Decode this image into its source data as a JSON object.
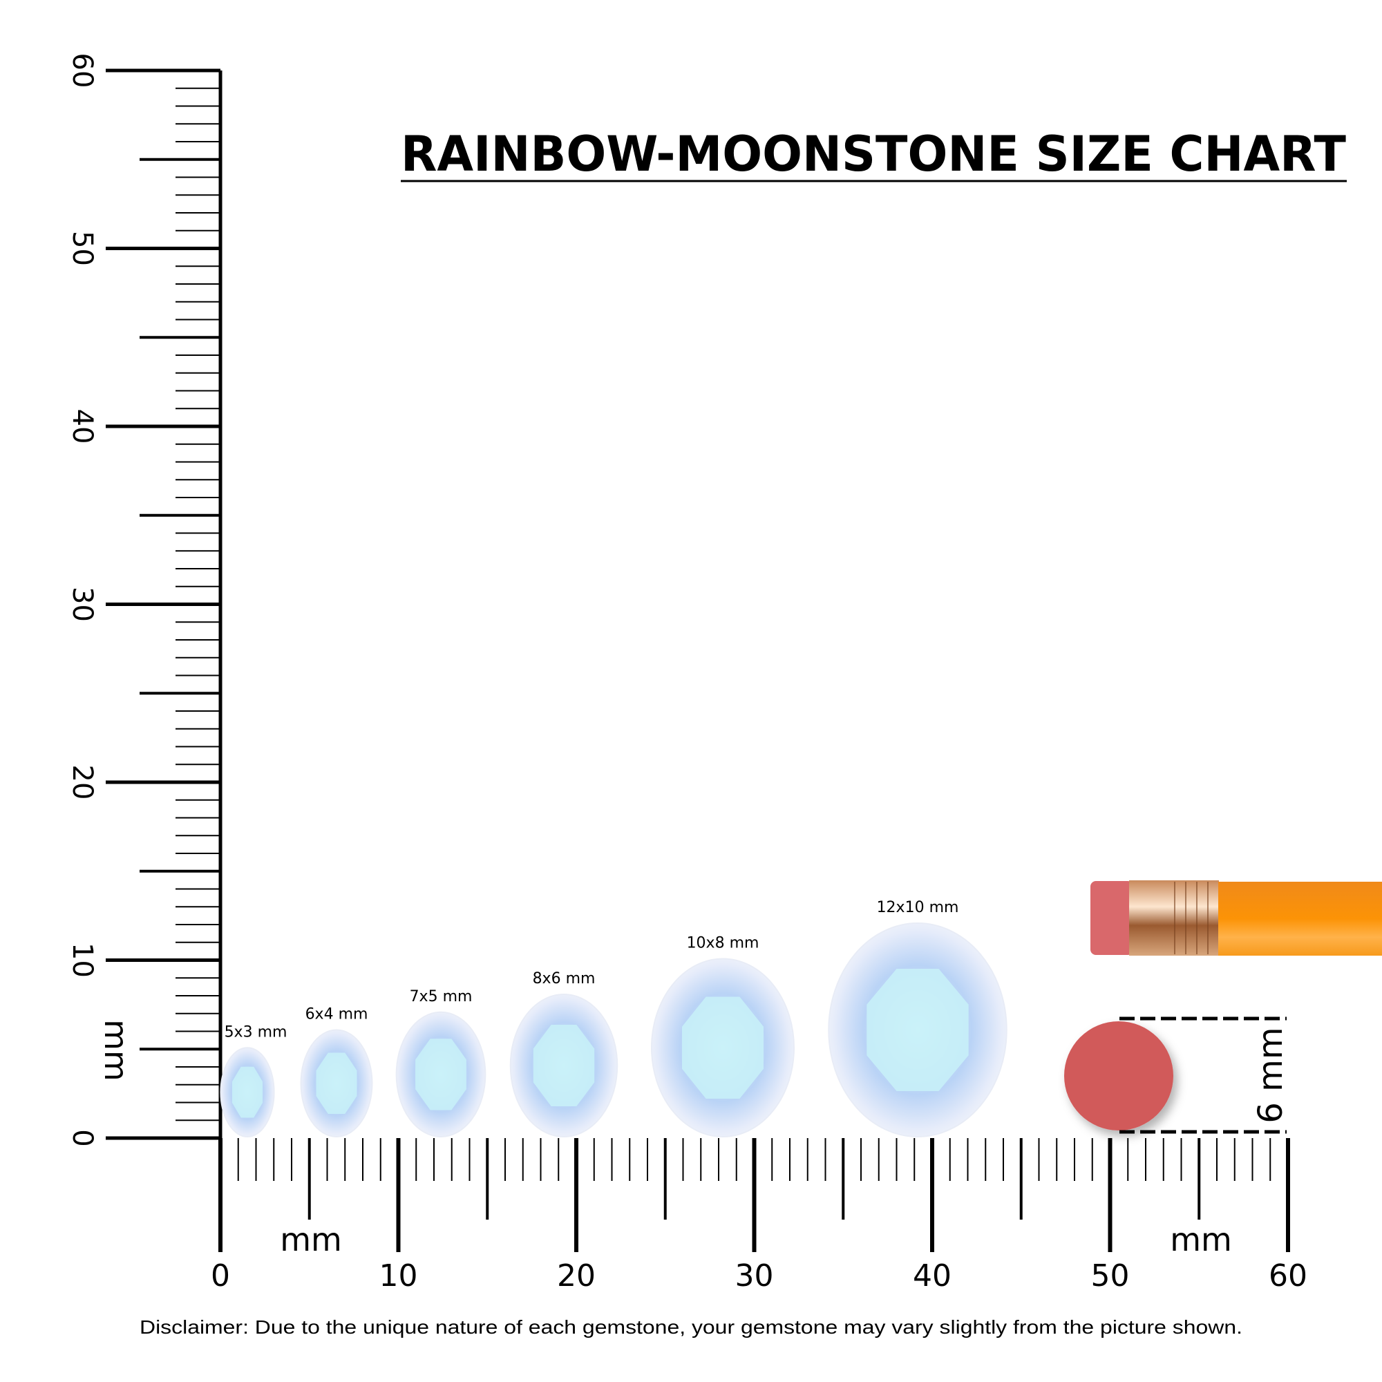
{
  "title": "RAINBOW-MOONSTONE SIZE CHART",
  "ruler": {
    "unit": "mm",
    "max": 60,
    "labels": [
      "0",
      "10",
      "20",
      "30",
      "40",
      "50",
      "60"
    ]
  },
  "gems": [
    {
      "label": "5x3 mm",
      "length_mm": 5,
      "width_mm": 3
    },
    {
      "label": "6x4 mm",
      "length_mm": 6,
      "width_mm": 4
    },
    {
      "label": "7x5 mm",
      "length_mm": 7,
      "width_mm": 5
    },
    {
      "label": "8x6 mm",
      "length_mm": 8,
      "width_mm": 6
    },
    {
      "label": "10x8 mm",
      "length_mm": 10,
      "width_mm": 8
    },
    {
      "label": "12x10 mm",
      "length_mm": 12,
      "width_mm": 10
    }
  ],
  "reference": {
    "label": "6 mm",
    "diameter_mm": 6,
    "eraser_color": "#d15a5a",
    "pencil_color": "#fb8c0a"
  },
  "disclaimer": "Disclaimer: Due to the unique nature of each gemstone, your gemstone may vary slightly from the picture shown."
}
